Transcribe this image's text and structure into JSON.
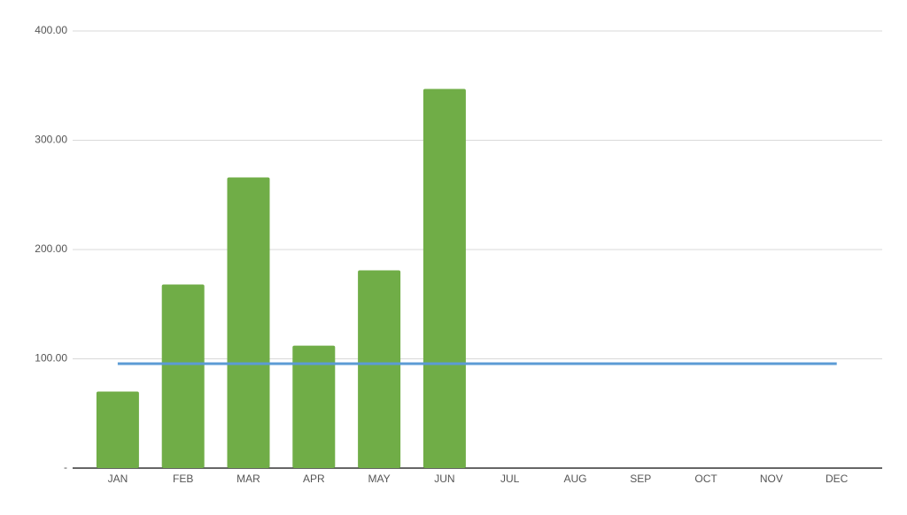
{
  "chart_data": {
    "type": "bar",
    "categories": [
      "JAN",
      "FEB",
      "MAR",
      "APR",
      "MAY",
      "JUN",
      "JUL",
      "AUG",
      "SEP",
      "OCT",
      "NOV",
      "DEC"
    ],
    "series": [
      {
        "type": "bar",
        "color": "#70ad47",
        "values": [
          70,
          168,
          266,
          112,
          181,
          347,
          null,
          null,
          null,
          null,
          null,
          null
        ]
      },
      {
        "type": "line",
        "color": "#5b9bd5",
        "values": [
          95.5,
          95.5,
          95.5,
          95.5,
          95.5,
          95.5,
          95.5,
          95.5,
          95.5,
          95.5,
          95.5,
          95.5
        ]
      }
    ],
    "ylim": [
      0,
      400
    ],
    "yticks": [
      {
        "value": 0,
        "label": "-"
      },
      {
        "value": 100,
        "label": "100.00"
      },
      {
        "value": 200,
        "label": "200.00"
      },
      {
        "value": 300,
        "label": "300.00"
      },
      {
        "value": 400,
        "label": "400.00"
      }
    ],
    "grid": true
  }
}
